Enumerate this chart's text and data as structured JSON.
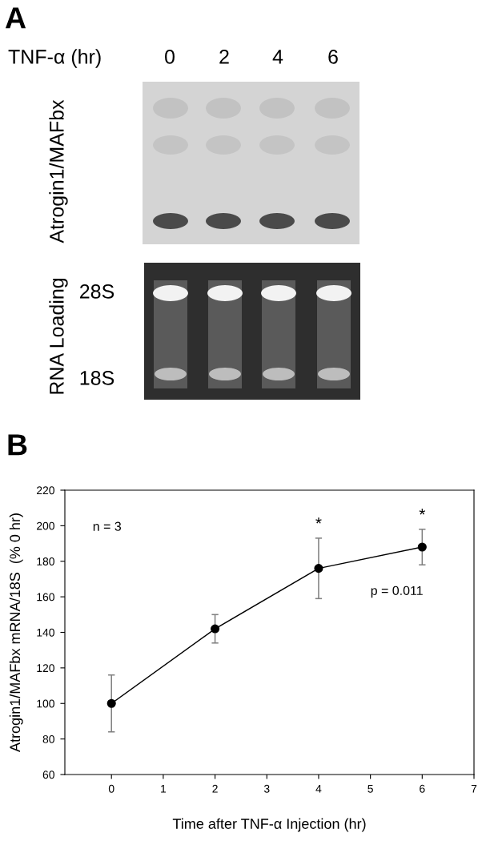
{
  "chart_data": {
    "type": "line",
    "title": "B",
    "xlabel": "Time after TNF-α Injection (hr)",
    "ylabel": "Atrogin1/MAFbx mRNA/18S  (% 0 hr)",
    "x": [
      0,
      2,
      4,
      6
    ],
    "values": [
      100,
      142,
      176,
      188
    ],
    "errors": [
      16,
      8,
      17,
      10
    ],
    "color": "#000000",
    "marker": "circle",
    "line_style": "solid",
    "xlim": [
      -0.9,
      7
    ],
    "xticks": [
      0,
      1,
      2,
      3,
      4,
      5,
      6,
      7
    ],
    "ylim": [
      60,
      220
    ],
    "yticks": [
      60,
      80,
      100,
      120,
      140,
      160,
      180,
      200,
      220
    ],
    "annotations": [
      "A",
      "TNF-α (hr)",
      "0",
      "2",
      "4",
      "6",
      "Atrogin1/MAFbx",
      "RNA Loading",
      "28S",
      "18S",
      "n = 3",
      {
        "text": "*",
        "x": 4,
        "y": 193
      },
      {
        "text": "*",
        "x": 6,
        "y": 198
      },
      "p = 0.011"
    ]
  }
}
